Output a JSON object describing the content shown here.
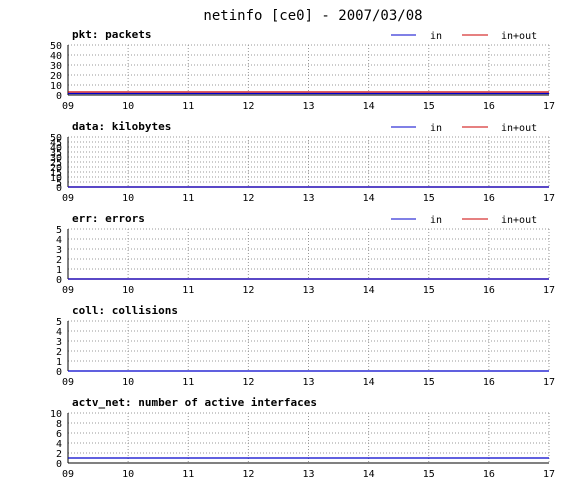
{
  "title": "netinfo [ce0] - 2007/03/08",
  "x_tick_labels": [
    "09",
    "10",
    "11",
    "12",
    "13",
    "14",
    "15",
    "16",
    "17"
  ],
  "legend_labels": {
    "in": "in",
    "in_out": "in+out"
  },
  "colors": {
    "in": "#0000cc",
    "in_out": "#cc0000",
    "grid": "#999999",
    "axis": "#000000"
  },
  "chart_data": [
    {
      "type": "line",
      "title": "pkt: packets",
      "x": [
        9,
        17
      ],
      "ylim": [
        0,
        50
      ],
      "y_ticks": [
        0,
        10,
        20,
        30,
        40,
        50
      ],
      "legend": true,
      "series": [
        {
          "name": "in",
          "color": "#0000cc",
          "x": [
            9,
            17
          ],
          "values": [
            1.5,
            1.5
          ]
        },
        {
          "name": "in+out",
          "color": "#cc0000",
          "x": [
            9,
            17
          ],
          "values": [
            3,
            3
          ]
        }
      ]
    },
    {
      "type": "line",
      "title": "data: kilobytes",
      "x": [
        9,
        17
      ],
      "ylim": [
        0,
        50
      ],
      "y_ticks": [
        0,
        5,
        10,
        15,
        20,
        25,
        30,
        35,
        40,
        45,
        50
      ],
      "legend": true,
      "series": [
        {
          "name": "in",
          "color": "#0000cc",
          "x": [
            9,
            17
          ],
          "values": [
            0,
            0
          ]
        },
        {
          "name": "in+out",
          "color": "#cc0000",
          "x": [
            9,
            17
          ],
          "values": [
            0,
            0
          ]
        }
      ]
    },
    {
      "type": "line",
      "title": "err: errors",
      "x": [
        9,
        17
      ],
      "ylim": [
        0,
        5
      ],
      "y_ticks": [
        0,
        1,
        2,
        3,
        4,
        5
      ],
      "legend": true,
      "series": [
        {
          "name": "in",
          "color": "#0000cc",
          "x": [
            9,
            17
          ],
          "values": [
            0,
            0
          ]
        },
        {
          "name": "in+out",
          "color": "#cc0000",
          "x": [
            9,
            17
          ],
          "values": [
            0,
            0
          ]
        }
      ]
    },
    {
      "type": "line",
      "title": "coll: collisions",
      "x": [
        9,
        17
      ],
      "ylim": [
        0,
        5
      ],
      "y_ticks": [
        0,
        1,
        2,
        3,
        4,
        5
      ],
      "legend": false,
      "series": [
        {
          "color": "#0000cc",
          "x": [
            9,
            17
          ],
          "values": [
            0,
            0
          ]
        }
      ]
    },
    {
      "type": "line",
      "title": "actv_net: number of active interfaces",
      "x": [
        9,
        17
      ],
      "ylim": [
        0,
        10
      ],
      "y_ticks": [
        0,
        2,
        4,
        6,
        8,
        10
      ],
      "legend": false,
      "series": [
        {
          "color": "#0000cc",
          "x": [
            9,
            17
          ],
          "values": [
            1,
            1
          ]
        }
      ]
    }
  ]
}
